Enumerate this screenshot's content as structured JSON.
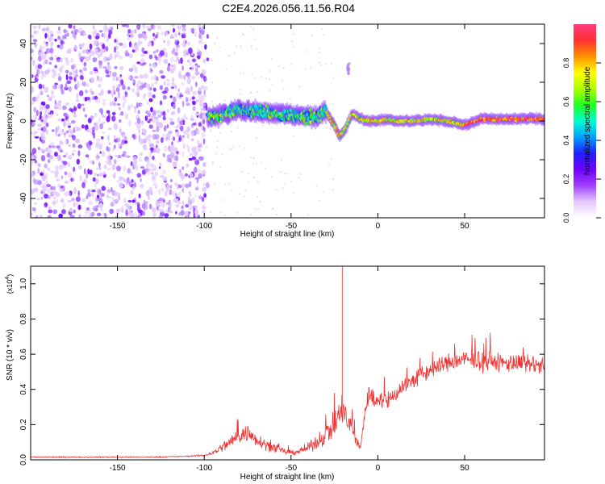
{
  "title": "C2E4.2026.056.11.56.R04",
  "chart_data": [
    {
      "type": "heatmap",
      "name": "spectrogram",
      "xlabel": "Height of straight line (km)",
      "ylabel": "Frequency (Hz)",
      "xlim": [
        -200,
        96
      ],
      "ylim": [
        -50,
        50
      ],
      "xticks": [
        -150,
        -100,
        -50,
        0,
        50
      ],
      "yticks": [
        -40,
        -20,
        0,
        20,
        40
      ],
      "colorbar": {
        "label": "Normalized spectral amplitude",
        "range": [
          0,
          1
        ],
        "ticks": [
          0.0,
          0.2,
          0.4,
          0.6,
          0.8
        ],
        "tick_labels": [
          "0.0",
          "0.2",
          "0.4",
          "0.6",
          "0.8"
        ],
        "colormap": [
          "#ffffff",
          "#e6c8ff",
          "#a040ff",
          "#7000ff",
          "#2020ff",
          "#00a0ff",
          "#00ffd0",
          "#20ff20",
          "#b0ff00",
          "#ffff00",
          "#ff9000",
          "#ff3030",
          "#ff3c80"
        ]
      },
      "regions": [
        {
          "name": "noise",
          "x": [
            -200,
            -98
          ],
          "f": [
            -50,
            50
          ],
          "amplitude": 0.12
        },
        {
          "name": "onset",
          "x": [
            -98,
            -30
          ],
          "f_center": 3,
          "f_spread": 6,
          "amplitude": 0.3
        },
        {
          "name": "fringe-line",
          "x": [
            -30,
            96
          ],
          "f_center": 1,
          "amplitude": 0.8
        }
      ],
      "spur": {
        "x": -17,
        "f": 27,
        "amplitude": 0.15
      },
      "fringe_track": {
        "x": [
          -98,
          -90,
          -80,
          -70,
          -60,
          -50,
          -40,
          -35,
          -30,
          -25,
          -22,
          -18,
          -15,
          -10,
          -5,
          0,
          5,
          10,
          20,
          30,
          40,
          50,
          60,
          70,
          80,
          90,
          96
        ],
        "f": [
          2,
          3,
          6,
          5,
          4,
          3,
          2,
          2,
          5,
          -2,
          -8,
          -3,
          4,
          1,
          0,
          0,
          1,
          0,
          0,
          1,
          0,
          -2,
          1,
          1,
          1,
          1,
          1
        ]
      }
    },
    {
      "type": "line",
      "name": "snr",
      "xlabel": "Height of straight line (km)",
      "ylabel": "SNR (10 * v/v)",
      "yscale_label": "(x10",
      "yscale_exp": "4",
      "yscale_close": ")",
      "xlim": [
        -200,
        96
      ],
      "ylim": [
        0,
        1.1
      ],
      "xticks": [
        -150,
        -100,
        -50,
        0,
        50
      ],
      "yticks": [
        0.0,
        0.2,
        0.4,
        0.6,
        0.8,
        1.0
      ],
      "ytick_labels": [
        "0.0",
        "0.2",
        "0.4",
        "0.6",
        "0.8",
        "1.0"
      ],
      "color": "#ee3333",
      "series": [
        {
          "name": "SNR",
          "x": [
            -200,
            -190,
            -170,
            -150,
            -130,
            -110,
            -100,
            -95,
            -90,
            -85,
            -80,
            -75,
            -70,
            -65,
            -60,
            -55,
            -50,
            -45,
            -40,
            -35,
            -30,
            -25,
            -22,
            -20,
            -18,
            -15,
            -12,
            -10,
            -8,
            -5,
            -2,
            0,
            5,
            10,
            15,
            20,
            25,
            30,
            35,
            40,
            45,
            50,
            55,
            60,
            65,
            70,
            75,
            80,
            85,
            90,
            96
          ],
          "y": [
            0.015,
            0.015,
            0.015,
            0.015,
            0.015,
            0.02,
            0.025,
            0.04,
            0.07,
            0.1,
            0.14,
            0.15,
            0.12,
            0.09,
            0.07,
            0.05,
            0.04,
            0.05,
            0.07,
            0.1,
            0.15,
            0.2,
            0.25,
            0.3,
            0.22,
            0.18,
            0.1,
            0.06,
            0.25,
            0.38,
            0.33,
            0.36,
            0.32,
            0.38,
            0.42,
            0.45,
            0.48,
            0.51,
            0.53,
            0.55,
            0.56,
            0.57,
            0.56,
            0.56,
            0.56,
            0.55,
            0.55,
            0.55,
            0.54,
            0.54,
            0.53
          ],
          "noise": [
            0.005,
            0.005,
            0.005,
            0.005,
            0.005,
            0.005,
            0.008,
            0.02,
            0.04,
            0.06,
            0.07,
            0.08,
            0.06,
            0.05,
            0.04,
            0.03,
            0.02,
            0.03,
            0.04,
            0.06,
            0.09,
            0.12,
            0.14,
            0.15,
            0.12,
            0.1,
            0.05,
            0.04,
            0.08,
            0.09,
            0.08,
            0.07,
            0.08,
            0.08,
            0.08,
            0.08,
            0.08,
            0.08,
            0.08,
            0.08,
            0.08,
            0.08,
            0.08,
            0.08,
            0.08,
            0.08,
            0.08,
            0.08,
            0.08,
            0.08,
            0.08
          ],
          "spike": {
            "x": -20.5,
            "y": 1.1
          }
        }
      ]
    }
  ]
}
